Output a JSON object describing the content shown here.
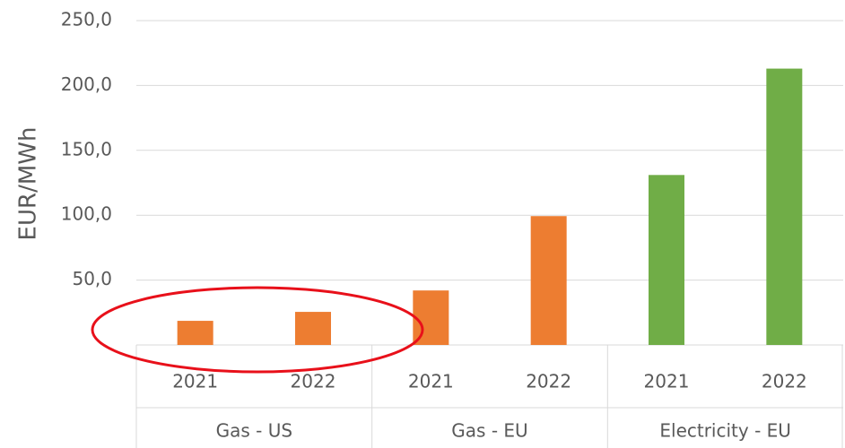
{
  "chart_data": {
    "type": "bar",
    "y_label": "EUR/MWh",
    "categories": [
      "2021",
      "2022",
      "2021",
      "2022",
      "2021",
      "2022"
    ],
    "groups": [
      "Gas - US",
      "Gas - EU",
      "Electricity - EU"
    ],
    "values": [
      18.6,
      25.5,
      42,
      99.3,
      131,
      213
    ],
    "colors": [
      "#ed7d31",
      "#ed7d31",
      "#ed7d31",
      "#ed7d31",
      "#70ad47",
      "#70ad47"
    ],
    "ylim": [
      0,
      250
    ],
    "yticks": [
      {
        "value": 50,
        "label": "50,0"
      },
      {
        "value": 100,
        "label": "100,0"
      },
      {
        "value": 150,
        "label": "150,0"
      },
      {
        "value": 200,
        "label": "200,0"
      },
      {
        "value": 250,
        "label": "250,0"
      }
    ],
    "grid": true
  }
}
